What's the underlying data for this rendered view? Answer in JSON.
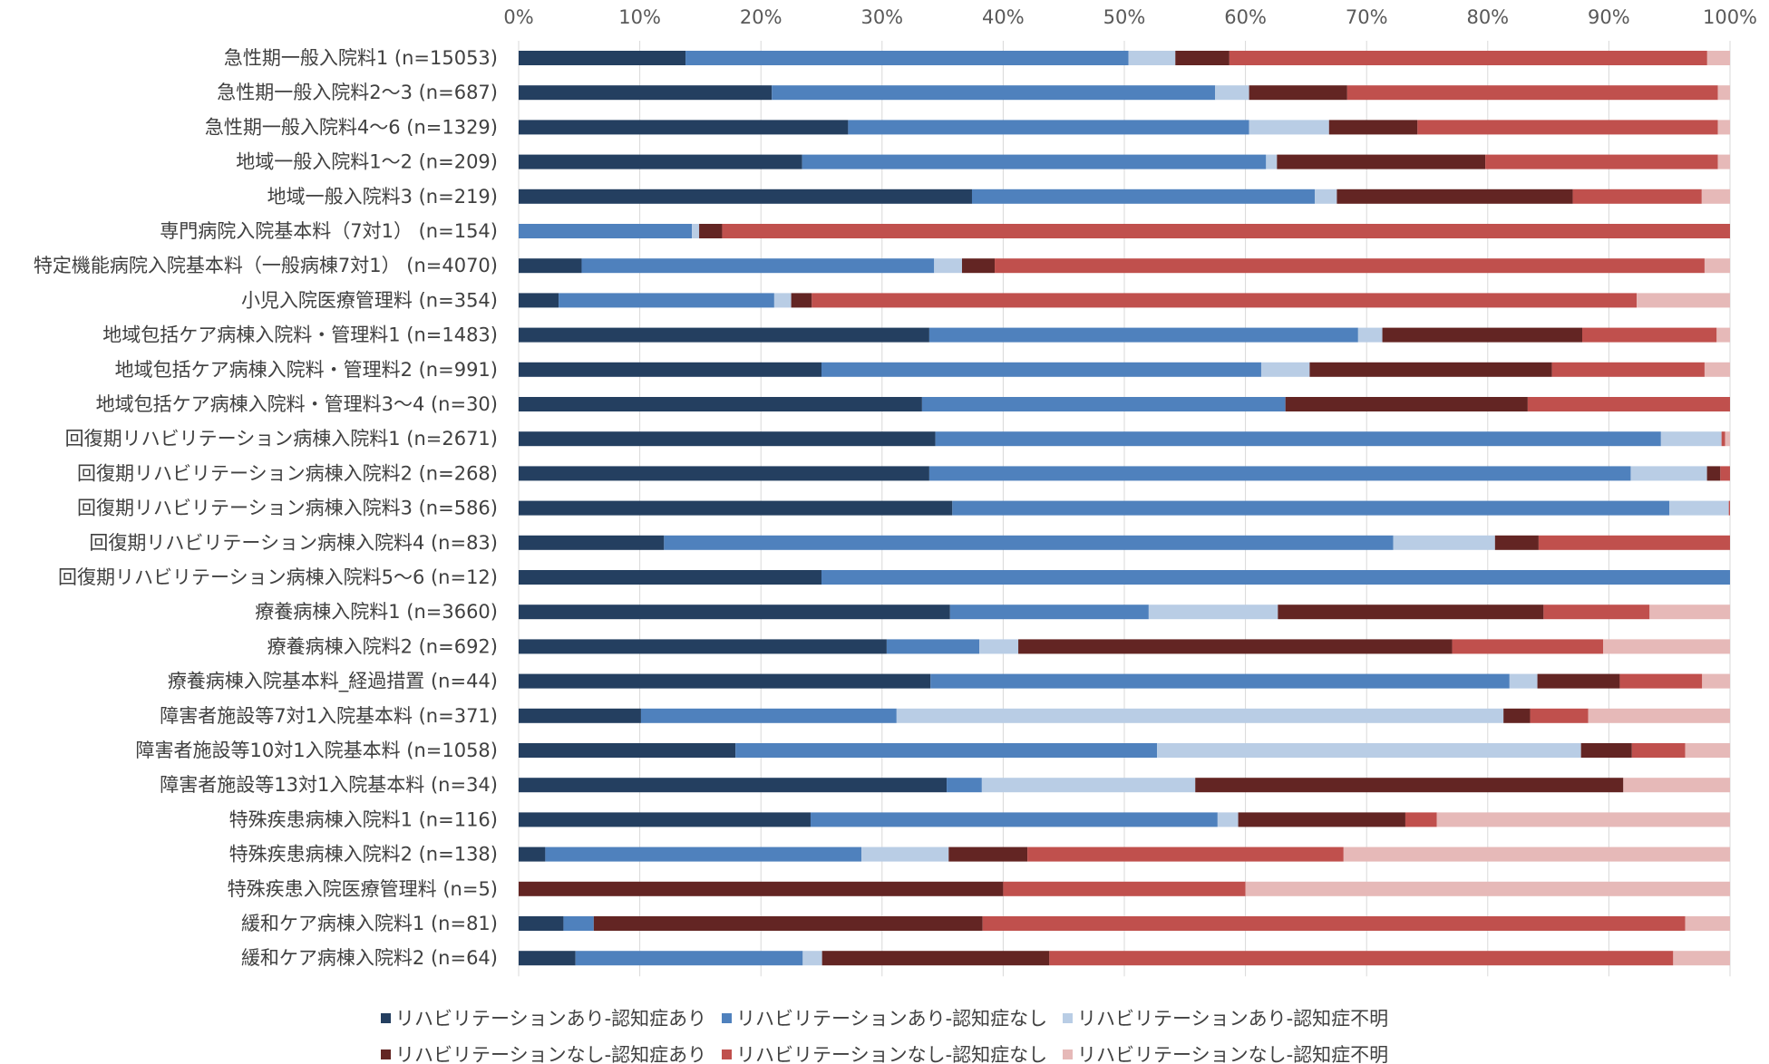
{
  "chart_data": {
    "type": "bar",
    "orientation": "horizontal",
    "stacked": "percent",
    "xlim": [
      0,
      100
    ],
    "x_ticks": [
      "0%",
      "10%",
      "20%",
      "30%",
      "40%",
      "50%",
      "60%",
      "70%",
      "80%",
      "90%",
      "100%"
    ],
    "grid": "vertical",
    "legend_position": "bottom",
    "categories": [
      "急性期一般入院料1 (n=15053)",
      "急性期一般入院料2～3 (n=687)",
      "急性期一般入院料4～6 (n=1329)",
      "地域一般入院料1～2 (n=209)",
      "地域一般入院料3 (n=219)",
      "専門病院入院基本料（7対1） (n=154)",
      "特定機能病院入院基本料（一般病棟7対1） (n=4070)",
      "小児入院医療管理料 (n=354)",
      "地域包括ケア病棟入院料・管理料1 (n=1483)",
      "地域包括ケア病棟入院料・管理料2 (n=991)",
      "地域包括ケア病棟入院料・管理料3～4 (n=30)",
      "回復期リハビリテーション病棟入院料1 (n=2671)",
      "回復期リハビリテーション病棟入院料2 (n=268)",
      "回復期リハビリテーション病棟入院料3 (n=586)",
      "回復期リハビリテーション病棟入院料4 (n=83)",
      "回復期リハビリテーション病棟入院料5～6 (n=12)",
      "療養病棟入院料1 (n=3660)",
      "療養病棟入院料2 (n=692)",
      "療養病棟入院基本料_経過措置 (n=44)",
      "障害者施設等7対1入院基本料 (n=371)",
      "障害者施設等10対1入院基本料 (n=1058)",
      "障害者施設等13対1入院基本料 (n=34)",
      "特殊疾患病棟入院料1 (n=116)",
      "特殊疾患病棟入院料2 (n=138)",
      "特殊疾患入院医療管理料 (n=5)",
      "緩和ケア病棟入院料1 (n=81)",
      "緩和ケア病棟入院料2 (n=64)"
    ],
    "series": [
      {
        "name": "リハビリテーションあり-認知症あり",
        "color": "#243F60",
        "values": [
          13.9,
          20.9,
          27.2,
          23.4,
          36.9,
          0.0,
          5.2,
          3.3,
          33.9,
          25.0,
          33.3,
          34.4,
          33.9,
          35.8,
          12.0,
          25.0,
          35.4,
          30.2,
          34.0,
          10.1,
          17.9,
          35.3,
          24.1,
          2.2,
          0.0,
          3.7,
          4.7
        ]
      },
      {
        "name": "リハビリテーションあり-認知症なし",
        "color": "#4F81BD",
        "values": [
          36.9,
          36.6,
          33.1,
          38.3,
          27.9,
          14.3,
          29.1,
          17.8,
          35.4,
          36.3,
          30.0,
          59.9,
          57.9,
          59.2,
          60.2,
          75.0,
          16.3,
          7.6,
          47.8,
          21.1,
          34.8,
          2.9,
          33.6,
          26.1,
          0.0,
          2.5,
          18.8
        ]
      },
      {
        "name": "リハビリテーションあり-認知症不明",
        "color": "#B9CDE5",
        "values": [
          3.9,
          2.8,
          6.6,
          0.9,
          1.8,
          0.6,
          2.3,
          1.4,
          2.0,
          4.0,
          0.0,
          5.0,
          6.3,
          4.9,
          8.4,
          0.0,
          10.6,
          3.2,
          2.3,
          50.1,
          35.0,
          17.6,
          1.7,
          7.2,
          0.0,
          0.0,
          1.6
        ]
      },
      {
        "name": "リハビリテーションなし-認知症あり",
        "color": "#632523",
        "values": [
          4.5,
          8.1,
          7.3,
          17.2,
          19.2,
          1.9,
          2.7,
          1.7,
          16.5,
          20.0,
          20.0,
          0.0,
          1.1,
          0.0,
          3.6,
          0.0,
          21.8,
          35.6,
          6.8,
          2.2,
          4.2,
          35.3,
          13.8,
          6.5,
          40.0,
          32.1,
          18.8
        ]
      },
      {
        "name": "リハビリテーションなし-認知症なし",
        "color": "#C0504D",
        "values": [
          39.8,
          30.6,
          24.8,
          19.2,
          10.5,
          83.2,
          58.6,
          68.1,
          11.1,
          12.6,
          16.7,
          0.3,
          0.8,
          0.1,
          15.8,
          0.0,
          8.7,
          12.4,
          6.8,
          4.8,
          4.4,
          0.0,
          2.6,
          26.1,
          20.0,
          58.0,
          51.6
        ]
      },
      {
        "name": "リハビリテーションなし-認知症不明",
        "color": "#E6B9B8",
        "values": [
          1.9,
          1.0,
          1.0,
          1.0,
          2.3,
          0.0,
          2.1,
          7.7,
          1.1,
          2.1,
          0.0,
          0.4,
          0.0,
          0.0,
          0.0,
          0.0,
          6.6,
          10.4,
          2.3,
          11.7,
          3.7,
          8.8,
          24.2,
          31.9,
          40.0,
          3.7,
          4.7
        ]
      }
    ]
  }
}
